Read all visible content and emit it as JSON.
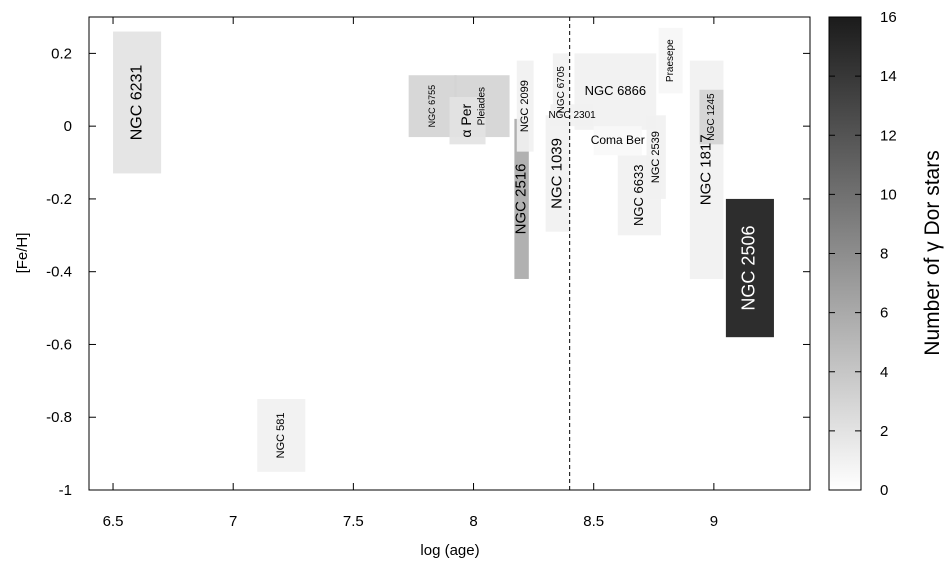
{
  "chart_data": {
    "type": "scatter",
    "subtype": "labeled-rectangles",
    "xlabel": "log (age)",
    "ylabel": "[Fe/H]",
    "colorbar_label": "Number of γ Dor stars",
    "xlim": [
      6.4,
      9.4
    ],
    "ylim": [
      -1.0,
      0.3
    ],
    "xticks": [
      6.5,
      7,
      7.5,
      8,
      8.5,
      9
    ],
    "xtick_labels": [
      "6.5",
      "7",
      "7.5",
      "8",
      "8.5",
      "9"
    ],
    "yticks": [
      0.2,
      0,
      -0.2,
      -0.4,
      -0.6,
      -0.8,
      -1.0
    ],
    "ytick_labels": [
      "0.2",
      "0",
      "-0.2",
      "-0.4",
      "-0.6",
      "-0.8",
      "-1"
    ],
    "colorbar_range": [
      0,
      16
    ],
    "colorbar_ticks": [
      0,
      2,
      4,
      6,
      8,
      10,
      12,
      14,
      16
    ],
    "colorbar_tick_labels": [
      "0",
      "2",
      "4",
      "6",
      "8",
      "10",
      "12",
      "14",
      "16"
    ],
    "vertical_line": {
      "x": 8.4,
      "style": "dashed"
    },
    "grid": false,
    "clusters": [
      {
        "name": "NGC 6231",
        "x": [
          6.5,
          6.7
        ],
        "y": [
          -0.13,
          0.26
        ],
        "count": 2,
        "vertical": true,
        "size": 16
      },
      {
        "name": "NGC 581",
        "x": [
          7.1,
          7.3
        ],
        "y": [
          -0.95,
          -0.75
        ],
        "count": 1,
        "vertical": true,
        "size": 11
      },
      {
        "name": "NGC 6755",
        "x": [
          7.73,
          7.93
        ],
        "y": [
          -0.03,
          0.14
        ],
        "count": 3,
        "vertical": true,
        "size": 9
      },
      {
        "name": "α Per",
        "x": [
          7.9,
          8.05
        ],
        "y": [
          -0.05,
          0.08
        ],
        "count": 2,
        "vertical": true,
        "size": 14
      },
      {
        "name": "Pleiades",
        "x": [
          7.92,
          8.15
        ],
        "y": [
          -0.03,
          0.14
        ],
        "count": 3,
        "vertical": true,
        "size": 10
      },
      {
        "name": "NGC 2099",
        "x": [
          8.18,
          8.25
        ],
        "y": [
          -0.07,
          0.18
        ],
        "count": 1,
        "vertical": true,
        "size": 11
      },
      {
        "name": "NGC 2516",
        "x": [
          8.17,
          8.23
        ],
        "y": [
          -0.42,
          0.02
        ],
        "count": 6,
        "vertical": true,
        "size": 15,
        "white_label": false
      },
      {
        "name": "NGC 1039",
        "x": [
          8.3,
          8.4
        ],
        "y": [
          -0.29,
          0.03
        ],
        "count": 1,
        "vertical": true,
        "size": 15
      },
      {
        "name": "NGC 6705",
        "x": [
          8.33,
          8.4
        ],
        "y": [
          0.0,
          0.2
        ],
        "count": 1,
        "vertical": true,
        "size": 10
      },
      {
        "name": "NGC 2301",
        "x": [
          8.32,
          8.5
        ],
        "y": [
          0.0,
          0.06
        ],
        "count": 1,
        "vertical": false,
        "size": 10
      },
      {
        "name": "NGC 6866",
        "x": [
          8.42,
          8.76
        ],
        "y": [
          -0.01,
          0.2
        ],
        "count": 1,
        "vertical": false,
        "size": 13
      },
      {
        "name": "Coma Ber",
        "x": [
          8.5,
          8.7
        ],
        "y": [
          -0.08,
          0.0
        ],
        "count": 0.5,
        "vertical": false,
        "size": 12
      },
      {
        "name": "NGC 6633",
        "x": [
          8.6,
          8.78
        ],
        "y": [
          -0.3,
          -0.08
        ],
        "count": 1,
        "vertical": true,
        "size": 13
      },
      {
        "name": "NGC 2539",
        "x": [
          8.72,
          8.8
        ],
        "y": [
          -0.2,
          0.03
        ],
        "count": 1,
        "vertical": true,
        "size": 11
      },
      {
        "name": "Praesepe",
        "x": [
          8.77,
          8.87
        ],
        "y": [
          0.09,
          0.27
        ],
        "count": 0.6,
        "vertical": true,
        "size": 10
      },
      {
        "name": "NGC 1817",
        "x": [
          8.9,
          9.04
        ],
        "y": [
          -0.42,
          0.18
        ],
        "count": 1,
        "vertical": true,
        "size": 15
      },
      {
        "name": "NGC 1245",
        "x": [
          8.94,
          9.04
        ],
        "y": [
          -0.05,
          0.1
        ],
        "count": 3,
        "vertical": true,
        "size": 10
      },
      {
        "name": "NGC 2506",
        "x": [
          9.05,
          9.25
        ],
        "y": [
          -0.58,
          -0.2
        ],
        "count": 16,
        "vertical": true,
        "size": 18
      }
    ]
  }
}
